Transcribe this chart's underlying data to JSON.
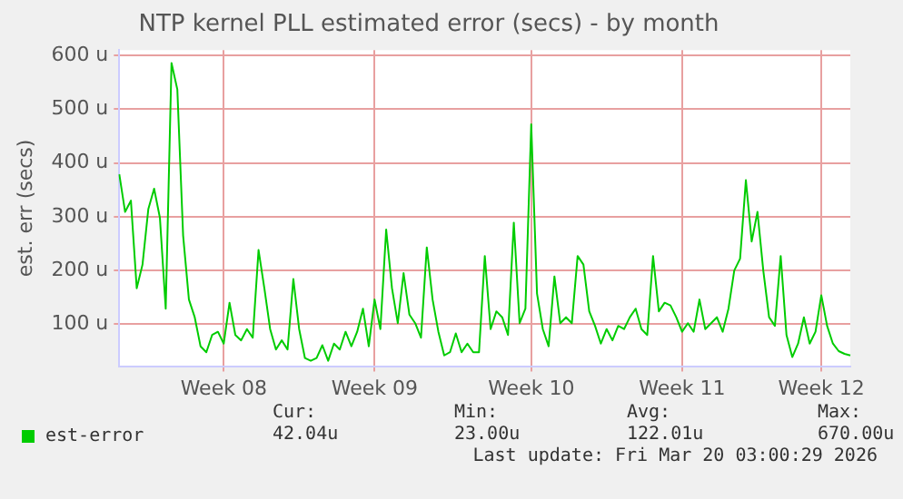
{
  "chart_data": {
    "type": "line",
    "title": "NTP kernel PLL estimated error (secs) - by month",
    "ylabel": "est. err (secs)",
    "categories": [
      null,
      null,
      null,
      null,
      null,
      null,
      null,
      null,
      null,
      null,
      null,
      null,
      null,
      null,
      null,
      null,
      null,
      null,
      "Week 08",
      null,
      null,
      null,
      null,
      null,
      null,
      null,
      null,
      null,
      null,
      null,
      null,
      null,
      null,
      null,
      null,
      null,
      null,
      null,
      null,
      null,
      null,
      null,
      null,
      null,
      "Week 09",
      null,
      null,
      null,
      null,
      null,
      null,
      null,
      null,
      null,
      null,
      null,
      null,
      null,
      null,
      null,
      null,
      null,
      null,
      null,
      null,
      null,
      null,
      null,
      null,
      null,
      null,
      "Week 10",
      null,
      null,
      null,
      null,
      null,
      null,
      null,
      null,
      null,
      null,
      null,
      null,
      null,
      null,
      null,
      null,
      null,
      null,
      null,
      null,
      null,
      null,
      null,
      null,
      null,
      "Week 11",
      null,
      null,
      null,
      null,
      null,
      null,
      null,
      null,
      null,
      null,
      null,
      null,
      null,
      null,
      null,
      null,
      null,
      null,
      null,
      null,
      null,
      null,
      null,
      "Week 12",
      null,
      null,
      null,
      null,
      null
    ],
    "ylim": [
      22,
      610
    ],
    "yticks": [
      {
        "value": 100,
        "label": "100 u"
      },
      {
        "value": 200,
        "label": "200 u"
      },
      {
        "value": 300,
        "label": "300 u"
      },
      {
        "value": 400,
        "label": "400 u"
      },
      {
        "value": 500,
        "label": "500 u"
      },
      {
        "value": 600,
        "label": "600 u"
      }
    ],
    "grid": true,
    "legend": "bottom left",
    "series": [
      {
        "name": "est-error",
        "color": "#00cc00",
        "values": [
          379,
          309,
          330,
          167,
          211,
          314,
          352,
          298,
          129,
          586,
          537,
          265,
          146,
          113,
          59,
          48,
          80,
          86,
          64,
          140,
          80,
          70,
          91,
          75,
          238,
          167,
          91,
          53,
          70,
          53,
          184,
          91,
          37,
          32,
          37,
          61,
          32,
          64,
          53,
          86,
          59,
          86,
          129,
          59,
          146,
          91,
          276,
          167,
          102,
          195,
          118,
          102,
          75,
          243,
          146,
          86,
          42,
          48,
          83,
          48,
          64,
          48,
          48,
          227,
          91,
          124,
          113,
          80,
          289,
          102,
          129,
          472,
          157,
          91,
          59,
          189,
          102,
          113,
          102,
          227,
          211,
          124,
          97,
          64,
          91,
          70,
          97,
          91,
          113,
          129,
          91,
          80,
          227,
          124,
          140,
          135,
          113,
          86,
          102,
          86,
          146,
          91,
          102,
          113,
          86,
          129,
          200,
          222,
          368,
          254,
          309,
          200,
          113,
          97,
          227,
          80,
          39,
          64,
          113,
          64,
          86,
          154,
          97,
          64,
          50,
          45,
          42
        ]
      }
    ],
    "annotations": [
      "Cur:",
      "Min:",
      "Avg:",
      "Max:",
      "42.04u",
      "23.00u",
      "122.01u",
      "670.00u",
      "Last update: Fri Mar 20 03:00:29 2026"
    ]
  }
}
